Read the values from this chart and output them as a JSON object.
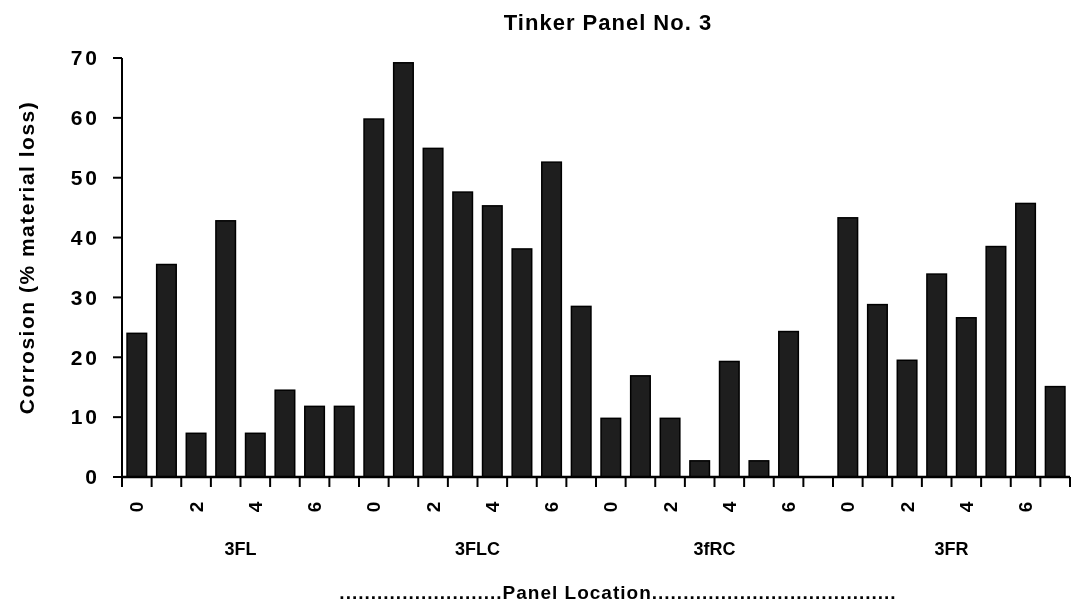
{
  "chart_data": {
    "type": "bar",
    "title": "Tinker  Panel  No.  3",
    "xlabel": "..........................Panel   Location.......................................",
    "ylabel": "Corrosion  (%  material  loss)",
    "categories": [
      "0",
      null,
      "2",
      null,
      "4",
      null,
      "6",
      null,
      "0",
      null,
      "2",
      null,
      "4",
      null,
      "6",
      null,
      "0",
      null,
      "2",
      null,
      "4",
      null,
      "6",
      null,
      "0",
      null,
      "2",
      null,
      "4",
      null,
      "6",
      null
    ],
    "values": [
      24,
      35.5,
      7.3,
      42.8,
      7.3,
      14.5,
      11.8,
      11.8,
      59.8,
      69.2,
      54.9,
      47.6,
      45.3,
      38.1,
      52.6,
      28.5,
      9.8,
      16.9,
      9.8,
      2.7,
      19.3,
      2.7,
      24.3,
      null,
      43.3,
      28.8,
      19.5,
      33.9,
      26.6,
      38.5,
      45.7,
      15.1
    ],
    "color": "#1e1e1e",
    "ylim": [
      0,
      70
    ],
    "yticks": [
      0,
      10,
      20,
      30,
      40,
      50,
      60,
      70
    ],
    "grid": false,
    "annotations": [
      "3FL",
      "3FLC",
      "3fRC",
      "3FR"
    ]
  }
}
